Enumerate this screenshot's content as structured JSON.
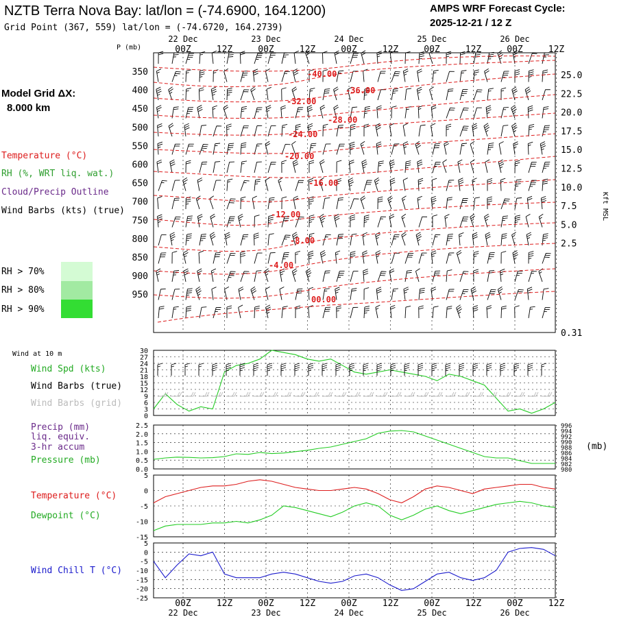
{
  "header": {
    "title": "NZTB Terra Nova Bay:  lat/lon = (-74.6900, 164.1200)",
    "grid_point": "Grid Point (367, 559) lat/lon = (-74.6720, 164.2739)",
    "forecast_cycle_label": "AMPS WRF Forecast Cycle:",
    "forecast_cycle_value": "2025-12-21 / 12  Z"
  },
  "model_grid": {
    "label": "Model Grid ΔX:",
    "value": "8.000 km"
  },
  "legend": {
    "temperature": "Temperature (°C)",
    "rh": "RH (%, WRT liq. wat.)",
    "cloud": "Cloud/Precip Outline",
    "wind_barbs": "Wind Barbs (kts) (true)",
    "rh70": "RH > 70%",
    "rh80": "RH > 80%",
    "rh90": "RH > 90%"
  },
  "colors": {
    "temperature": "#dd1c1c",
    "rh_label": "#2e9e2e",
    "cloud": "#6a2a8a",
    "green": "#22cc22",
    "blue": "#1a1acc",
    "gray": "#bbbbbb",
    "rh70": "#d4fbd4",
    "rh80": "#a2eaa2",
    "rh90": "#33dd33"
  },
  "time_axis": {
    "top_labels": [
      "00Z",
      "12Z",
      "00Z",
      "12Z",
      "00Z",
      "12Z",
      "00Z",
      "12Z",
      "00Z",
      "12Z"
    ],
    "bottom_labels": [
      "00Z",
      "12Z",
      "00Z",
      "12Z",
      "00Z",
      "12Z",
      "00Z",
      "12Z",
      "00Z",
      "12Z"
    ],
    "dates": [
      "22 Dec",
      "23 Dec",
      "24 Dec",
      "25 Dec",
      "26 Dec"
    ]
  },
  "chart_data": [
    {
      "type": "heatmap",
      "name": "cross-section",
      "p_axis_label": "P (mb)",
      "pressure_levels": [
        "350",
        "400",
        "450",
        "500",
        "550",
        "600",
        "650",
        "700",
        "750",
        "800",
        "850",
        "900",
        "950"
      ],
      "height_axis_label": "Kft MSL",
      "height_labels": [
        "25.0",
        "22.5",
        "20.0",
        "17.5",
        "15.0",
        "12.5",
        "10.0",
        "7.5",
        "5.0",
        "2.5",
        "0.31"
      ],
      "temperature_labels": [
        "-40.00",
        "-36.00",
        "-32.00",
        "-28.00",
        "-24.00",
        "-20.00",
        "-16.00",
        "-12.00",
        "-8.00",
        "-4.00",
        "00.00"
      ]
    },
    {
      "type": "line",
      "name": "wind",
      "header": "Wind at 10 m",
      "labels": {
        "speed": "Wind Spd (kts)",
        "barbs_true": "Wind Barbs (true)",
        "barbs_grid": "Wind Barbs (grid)"
      },
      "yticks": [
        "30",
        "27",
        "24",
        "21",
        "18",
        "15",
        "12",
        "9",
        "6",
        "3",
        "0"
      ],
      "ylim": [
        0,
        30
      ],
      "series": [
        {
          "name": "Wind Spd (kts)",
          "values": [
            3,
            10,
            5,
            2,
            4,
            3,
            20,
            23,
            24,
            26,
            30,
            29,
            28,
            26,
            25,
            26,
            23,
            20,
            19,
            20,
            21,
            20,
            19,
            18,
            16,
            19,
            18,
            16,
            14,
            8,
            2,
            3,
            1,
            3,
            6
          ]
        }
      ]
    },
    {
      "type": "line",
      "name": "precip-pressure",
      "labels": {
        "precip": "Precip (mm)",
        "liq": "liq. equiv.",
        "accum": "3-hr accum",
        "pressure": "Pressure (mb)"
      },
      "yticks_left": [
        "2.5",
        "2.0",
        "1.5",
        "1.0",
        "0.5",
        "0.0"
      ],
      "yticks_right": [
        "996",
        "994",
        "992",
        "990",
        "988",
        "986",
        "984",
        "982",
        "980"
      ],
      "unit_right": "(mb)",
      "ylim": [
        980,
        996
      ],
      "series": [
        {
          "name": "Pressure (mb)",
          "values": [
            983.5,
            984,
            984.3,
            984.2,
            984,
            984.1,
            984.5,
            985.5,
            985.3,
            986,
            985.6,
            985.8,
            986.3,
            986.8,
            987.5,
            988,
            989,
            990,
            991,
            993,
            993.8,
            994,
            993.5,
            992,
            990.5,
            989,
            987.5,
            986,
            984.5,
            984,
            984,
            983,
            982,
            982,
            982
          ]
        }
      ]
    },
    {
      "type": "line",
      "name": "temp-dewpoint",
      "labels": {
        "temperature": "Temperature (°C)",
        "dewpoint": "Dewpoint (°C)"
      },
      "yticks": [
        "5",
        "0",
        "-5",
        "-10",
        "-15"
      ],
      "ylim": [
        -15,
        5
      ],
      "series": [
        {
          "name": "Temperature (°C)",
          "values": [
            -4,
            -2,
            -1,
            0,
            1,
            1.5,
            1.5,
            2,
            3,
            3.5,
            3,
            2,
            1,
            0.5,
            0,
            0,
            0.5,
            1,
            0.5,
            -1,
            -3,
            -4,
            -2,
            0.5,
            1.5,
            1,
            0,
            -1,
            0.5,
            1,
            1.5,
            2,
            2,
            1,
            0.5
          ]
        },
        {
          "name": "Dewpoint (°C)",
          "values": [
            -13,
            -11.5,
            -11,
            -11,
            -11,
            -10.5,
            -10.5,
            -10,
            -10.5,
            -9.5,
            -8,
            -5,
            -5.5,
            -6.5,
            -7.5,
            -8.5,
            -7,
            -5,
            -4,
            -5,
            -8,
            -9.5,
            -8,
            -6,
            -5,
            -6.5,
            -7.5,
            -6.5,
            -5.5,
            -4.5,
            -4,
            -3.5,
            -4,
            -5,
            -5.5
          ]
        }
      ]
    },
    {
      "type": "line",
      "name": "wind-chill",
      "labels": {
        "wind_chill": "Wind Chill T (°C)"
      },
      "yticks": [
        "5",
        "0",
        "-5",
        "-10",
        "-15",
        "-20",
        "-25"
      ],
      "ylim": [
        -25,
        5
      ],
      "series": [
        {
          "name": "Wind Chill T (°C)",
          "values": [
            -5,
            -14,
            -7,
            -1,
            -2,
            0,
            -12,
            -14,
            -14,
            -14,
            -12,
            -11,
            -12,
            -14,
            -16,
            -17,
            -16,
            -13,
            -12,
            -14,
            -18,
            -21,
            -20,
            -16,
            -12,
            -11,
            -14,
            -15.5,
            -14,
            -10,
            0,
            2,
            2.5,
            1.5,
            -2
          ]
        }
      ]
    }
  ]
}
